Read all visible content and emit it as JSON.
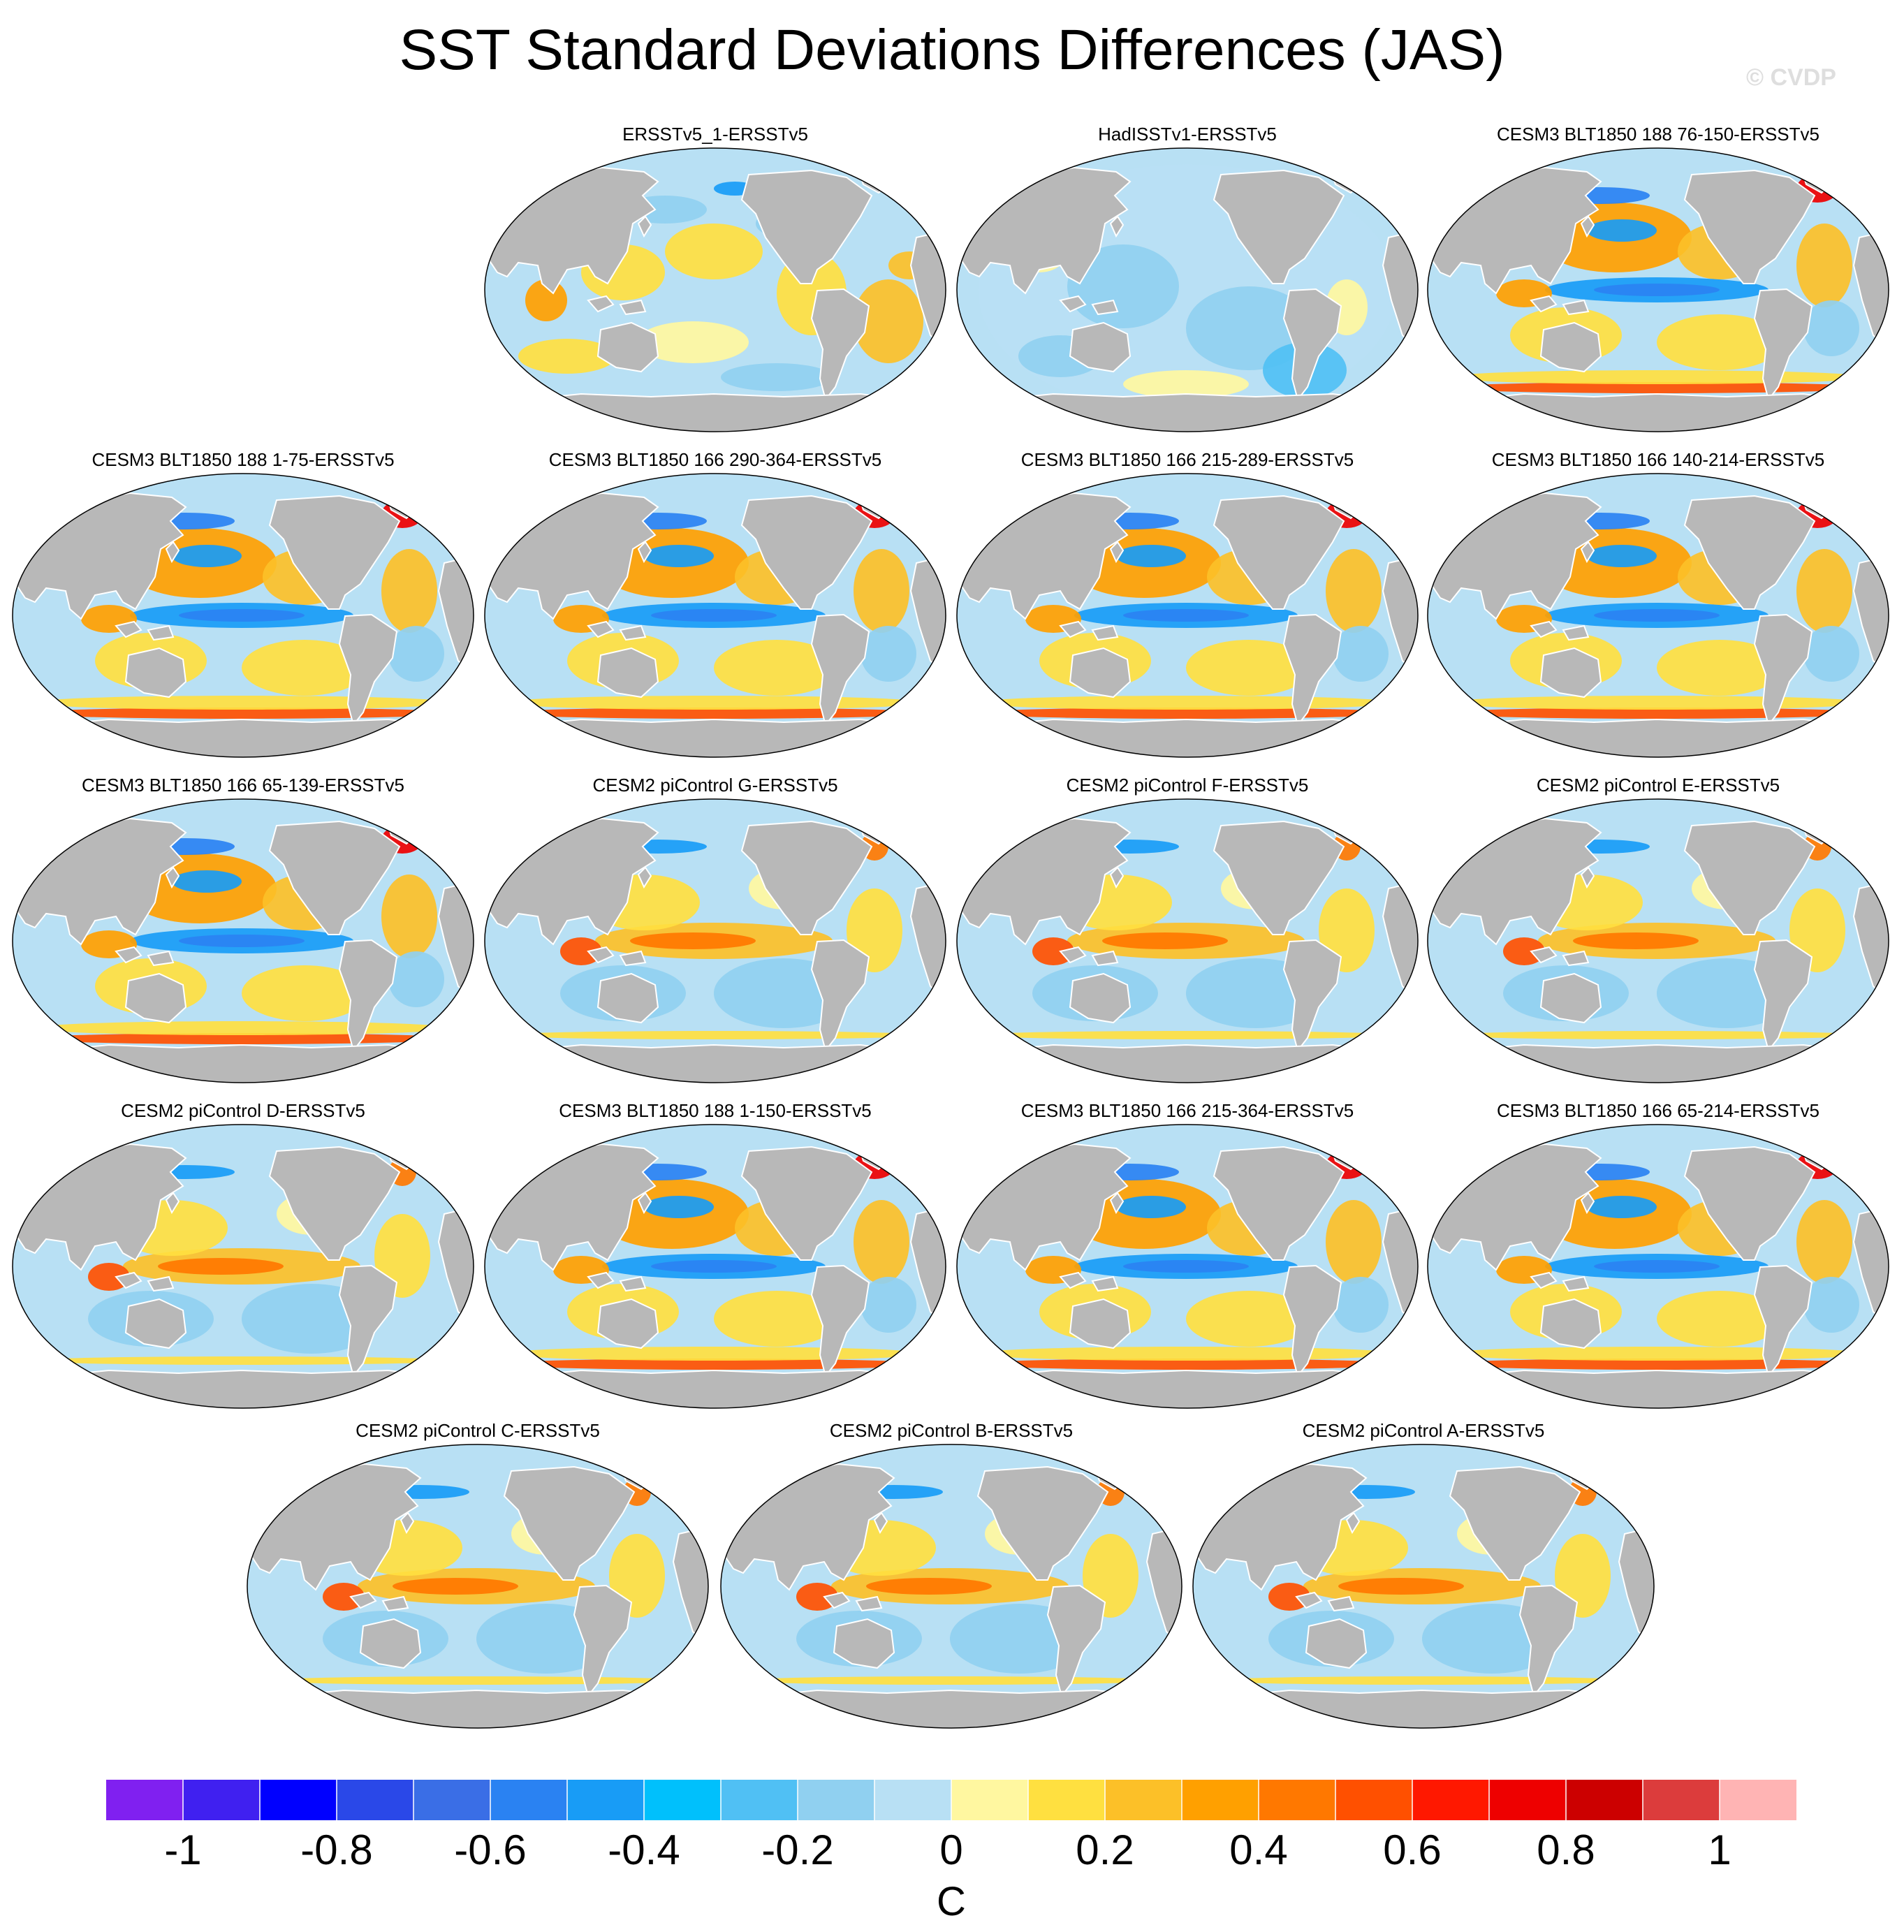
{
  "title": "SST Standard Deviations Differences (JAS)",
  "watermark": "© CVDP",
  "chart_data": {
    "type": "heatmap",
    "title": "SST Standard Deviations Differences (JAS)",
    "projection": "robinson",
    "units": "C",
    "colorbar": {
      "ticks": [
        -1,
        -0.8,
        -0.6,
        -0.4,
        -0.2,
        0,
        0.2,
        0.4,
        0.6,
        0.8,
        1
      ],
      "tick_labels": [
        "-1",
        "-0.8",
        "-0.6",
        "-0.4",
        "-0.2",
        "0",
        "0.2",
        "0.4",
        "0.6",
        "0.8",
        "1"
      ],
      "range": [
        -1.1,
        1.1
      ],
      "bin_width": 0.1,
      "colors": [
        "#8020f0",
        "#4020f0",
        "#0000ff",
        "#2a48e8",
        "#3a6ee6",
        "#2a82f2",
        "#189cf6",
        "#00c0fc",
        "#50c0f4",
        "#90d0f0",
        "#b8e0f4",
        "#fff7a0",
        "#ffe040",
        "#fcc028",
        "#ffa000",
        "#ff7800",
        "#ff5000",
        "#ff1800",
        "#ee0000",
        "#cc0000",
        "#dc3c3c",
        "#ffb4b4"
      ]
    },
    "panels": [
      {
        "title": "ERSSTv5_1-ERSSTv5",
        "pattern": "obs1"
      },
      {
        "title": "HadISSTv1-ERSSTv5",
        "pattern": "obs2"
      },
      {
        "title": "CESM3 BLT1850 188 76-150-ERSSTv5",
        "pattern": "cesm3"
      },
      {
        "title": "CESM3 BLT1850 188 1-75-ERSSTv5",
        "pattern": "cesm3"
      },
      {
        "title": "CESM3 BLT1850 166 290-364-ERSSTv5",
        "pattern": "cesm3"
      },
      {
        "title": "CESM3 BLT1850 166 215-289-ERSSTv5",
        "pattern": "cesm3"
      },
      {
        "title": "CESM3 BLT1850 166 140-214-ERSSTv5",
        "pattern": "cesm3"
      },
      {
        "title": "CESM3 BLT1850 166 65-139-ERSSTv5",
        "pattern": "cesm3"
      },
      {
        "title": "CESM2 piControl G-ERSSTv5",
        "pattern": "cesm2"
      },
      {
        "title": "CESM2 piControl F-ERSSTv5",
        "pattern": "cesm2"
      },
      {
        "title": "CESM2 piControl E-ERSSTv5",
        "pattern": "cesm2"
      },
      {
        "title": "CESM2 piControl D-ERSSTv5",
        "pattern": "cesm2"
      },
      {
        "title": "CESM3 BLT1850 188 1-150-ERSSTv5",
        "pattern": "cesm3"
      },
      {
        "title": "CESM3 BLT1850 166 215-364-ERSSTv5",
        "pattern": "cesm3"
      },
      {
        "title": "CESM3 BLT1850 166 65-214-ERSSTv5",
        "pattern": "cesm3"
      },
      {
        "title": "CESM2 piControl C-ERSSTv5",
        "pattern": "cesm2"
      },
      {
        "title": "CESM2 piControl B-ERSSTv5",
        "pattern": "cesm2"
      },
      {
        "title": "CESM2 piControl A-ERSSTv5",
        "pattern": "cesm2"
      }
    ]
  }
}
